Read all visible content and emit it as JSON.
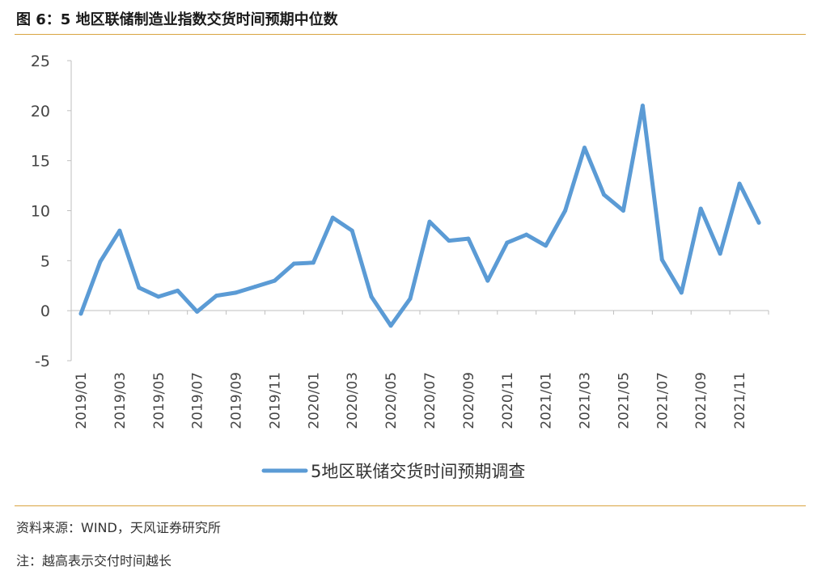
{
  "header": {
    "figure_title": "图 6：5 地区联储制造业指数交货时间预期中位数"
  },
  "footer": {
    "source": "资料来源：WIND，天风证券研究所",
    "note": "注：越高表示交付时间越长"
  },
  "colors": {
    "series": "#5b9bd5",
    "axis": "#bfbfbf",
    "rule": "#d9a441"
  },
  "chart_data": {
    "type": "line",
    "title": "",
    "xlabel": "",
    "ylabel": "",
    "ylim": [
      -5,
      25
    ],
    "yticks": [
      -5,
      0,
      5,
      10,
      15,
      20,
      25
    ],
    "grid": false,
    "legend_position": "bottom",
    "x": [
      "2019/01",
      "2019/02",
      "2019/03",
      "2019/04",
      "2019/05",
      "2019/06",
      "2019/07",
      "2019/08",
      "2019/09",
      "2019/10",
      "2019/11",
      "2019/12",
      "2020/01",
      "2020/02",
      "2020/03",
      "2020/04",
      "2020/05",
      "2020/06",
      "2020/07",
      "2020/08",
      "2020/09",
      "2020/10",
      "2020/11",
      "2020/12",
      "2021/01",
      "2021/02",
      "2021/03",
      "2021/04",
      "2021/05",
      "2021/06",
      "2021/07",
      "2021/08",
      "2021/09",
      "2021/10",
      "2021/11",
      "2021/12"
    ],
    "xtick_labels": [
      "2019/01",
      "2019/03",
      "2019/05",
      "2019/07",
      "2019/09",
      "2019/11",
      "2020/01",
      "2020/03",
      "2020/05",
      "2020/07",
      "2020/09",
      "2020/11",
      "2021/01",
      "2021/03",
      "2021/05",
      "2021/07",
      "2021/09",
      "2021/11"
    ],
    "series": [
      {
        "name": "5地区联储交货时间预期调查",
        "values": [
          -0.3,
          4.9,
          8.0,
          2.3,
          1.4,
          2.0,
          -0.1,
          1.5,
          1.8,
          2.4,
          3.0,
          4.7,
          4.8,
          9.3,
          8.0,
          1.4,
          -1.5,
          1.2,
          8.9,
          7.0,
          7.2,
          3.0,
          6.8,
          7.6,
          6.5,
          10.0,
          16.3,
          11.6,
          10.0,
          20.5,
          5.1,
          1.8,
          10.2,
          5.7,
          12.7,
          8.8
        ]
      }
    ]
  }
}
